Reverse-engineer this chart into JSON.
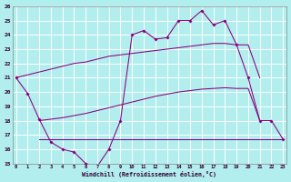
{
  "xlabel": "Windchill (Refroidissement éolien,°C)",
  "background_color": "#b2eeee",
  "grid_color": "#ffffff",
  "line_color": "#880080",
  "x": [
    0,
    1,
    2,
    3,
    4,
    5,
    6,
    7,
    8,
    9,
    10,
    11,
    12,
    13,
    14,
    15,
    16,
    17,
    18,
    19,
    20,
    21,
    22,
    23
  ],
  "series_main": [
    21.0,
    19.9,
    18.1,
    16.5,
    16.0,
    15.8,
    15.0,
    14.8,
    16.0,
    18.0,
    24.0,
    24.3,
    23.7,
    23.8,
    25.0,
    25.0,
    25.7,
    24.7,
    25.0,
    23.3,
    21.0,
    18.0,
    18.0,
    16.7
  ],
  "series_upper_x": [
    0,
    1,
    2,
    3,
    4,
    5,
    6,
    7,
    8,
    9,
    10,
    11,
    12,
    13,
    14,
    15,
    16,
    17,
    18,
    19,
    20,
    21
  ],
  "series_upper_y": [
    21.0,
    21.2,
    21.4,
    21.6,
    21.8,
    22.0,
    22.1,
    22.3,
    22.5,
    22.6,
    22.7,
    22.8,
    22.9,
    23.0,
    23.1,
    23.2,
    23.3,
    23.4,
    23.4,
    23.3,
    23.3,
    21.0
  ],
  "series_lower_x": [
    2,
    3,
    4,
    5,
    6,
    7,
    8,
    9,
    10,
    11,
    12,
    13,
    14,
    15,
    16,
    17,
    18,
    19,
    20,
    21
  ],
  "series_lower_y": [
    18.0,
    18.1,
    18.2,
    18.35,
    18.5,
    18.7,
    18.9,
    19.1,
    19.3,
    19.5,
    19.7,
    19.85,
    20.0,
    20.1,
    20.2,
    20.25,
    20.3,
    20.25,
    20.25,
    18.0
  ],
  "series_flat_x": [
    2,
    3,
    4,
    5,
    6,
    7,
    8,
    9,
    10,
    11,
    12,
    13,
    14,
    15,
    16,
    17,
    18,
    19,
    20,
    21,
    22,
    23
  ],
  "series_flat_y": [
    16.7,
    16.7,
    16.7,
    16.7,
    16.7,
    16.7,
    16.7,
    16.7,
    16.7,
    16.7,
    16.7,
    16.7,
    16.7,
    16.7,
    16.7,
    16.7,
    16.7,
    16.7,
    16.7,
    16.7,
    16.7,
    16.7
  ],
  "ylim": [
    15,
    26
  ],
  "xlim": [
    -0.3,
    23.3
  ],
  "yticks": [
    15,
    16,
    17,
    18,
    19,
    20,
    21,
    22,
    23,
    24,
    25,
    26
  ],
  "xticks": [
    0,
    1,
    2,
    3,
    4,
    5,
    6,
    7,
    8,
    9,
    10,
    11,
    12,
    13,
    14,
    15,
    16,
    17,
    18,
    19,
    20,
    21,
    22,
    23
  ]
}
